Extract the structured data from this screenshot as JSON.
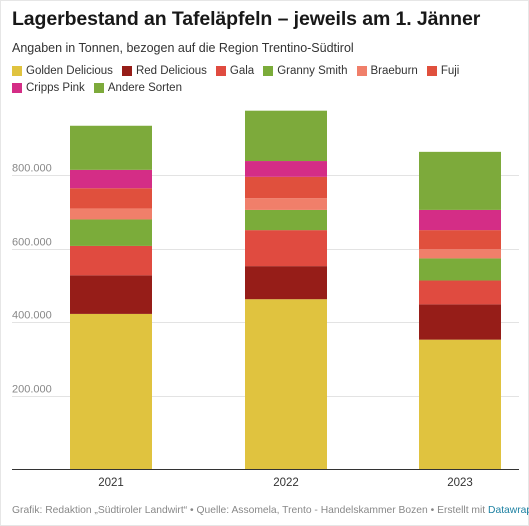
{
  "title": "Lagerbestand an Tafeläpfeln – jeweils am 1. Jänner",
  "subtitle": "Angaben in Tonnen, bezogen auf die Region Trentino-Südtirol",
  "footer": {
    "credit_label": "Grafik:",
    "credit": "Redaktion „Südtiroler Landwirt“",
    "source_label": "Quelle:",
    "source": "Assomela, Trento - Handelskammer Bozen",
    "created_with": "Erstellt mit",
    "tool": "Datawrapper"
  },
  "chart_data": {
    "type": "bar",
    "stacked": true,
    "categories": [
      "2021",
      "2022",
      "2023"
    ],
    "series": [
      {
        "name": "Golden Delicious",
        "color": "#e0c33f",
        "values": [
          422000,
          462000,
          352000
        ]
      },
      {
        "name": "Red Delicious",
        "color": "#961d18",
        "values": [
          105000,
          90000,
          96000
        ]
      },
      {
        "name": "Gala",
        "color": "#e04b40",
        "values": [
          80000,
          98000,
          65000
        ]
      },
      {
        "name": "Granny Smith",
        "color": "#7bac3a",
        "values": [
          72000,
          55000,
          60000
        ]
      },
      {
        "name": "Braeburn",
        "color": "#f07f6a",
        "values": [
          30000,
          32000,
          25000
        ]
      },
      {
        "name": "Fuji",
        "color": "#e0503d",
        "values": [
          55000,
          58000,
          52000
        ]
      },
      {
        "name": "Cripps Pink",
        "color": "#d42d86",
        "values": [
          50000,
          43000,
          55000
        ]
      },
      {
        "name": "Andere Sorten",
        "color": "#7daa3b",
        "values": [
          120000,
          137000,
          158000
        ]
      }
    ],
    "yticks": [
      "200.000",
      "400.000",
      "600.000",
      "800.000"
    ],
    "ytick_values": [
      200000,
      400000,
      600000,
      800000
    ],
    "ylim": [
      0,
      1000000
    ],
    "xlabel": "",
    "ylabel": "",
    "grid": true,
    "legend_position": "top"
  }
}
